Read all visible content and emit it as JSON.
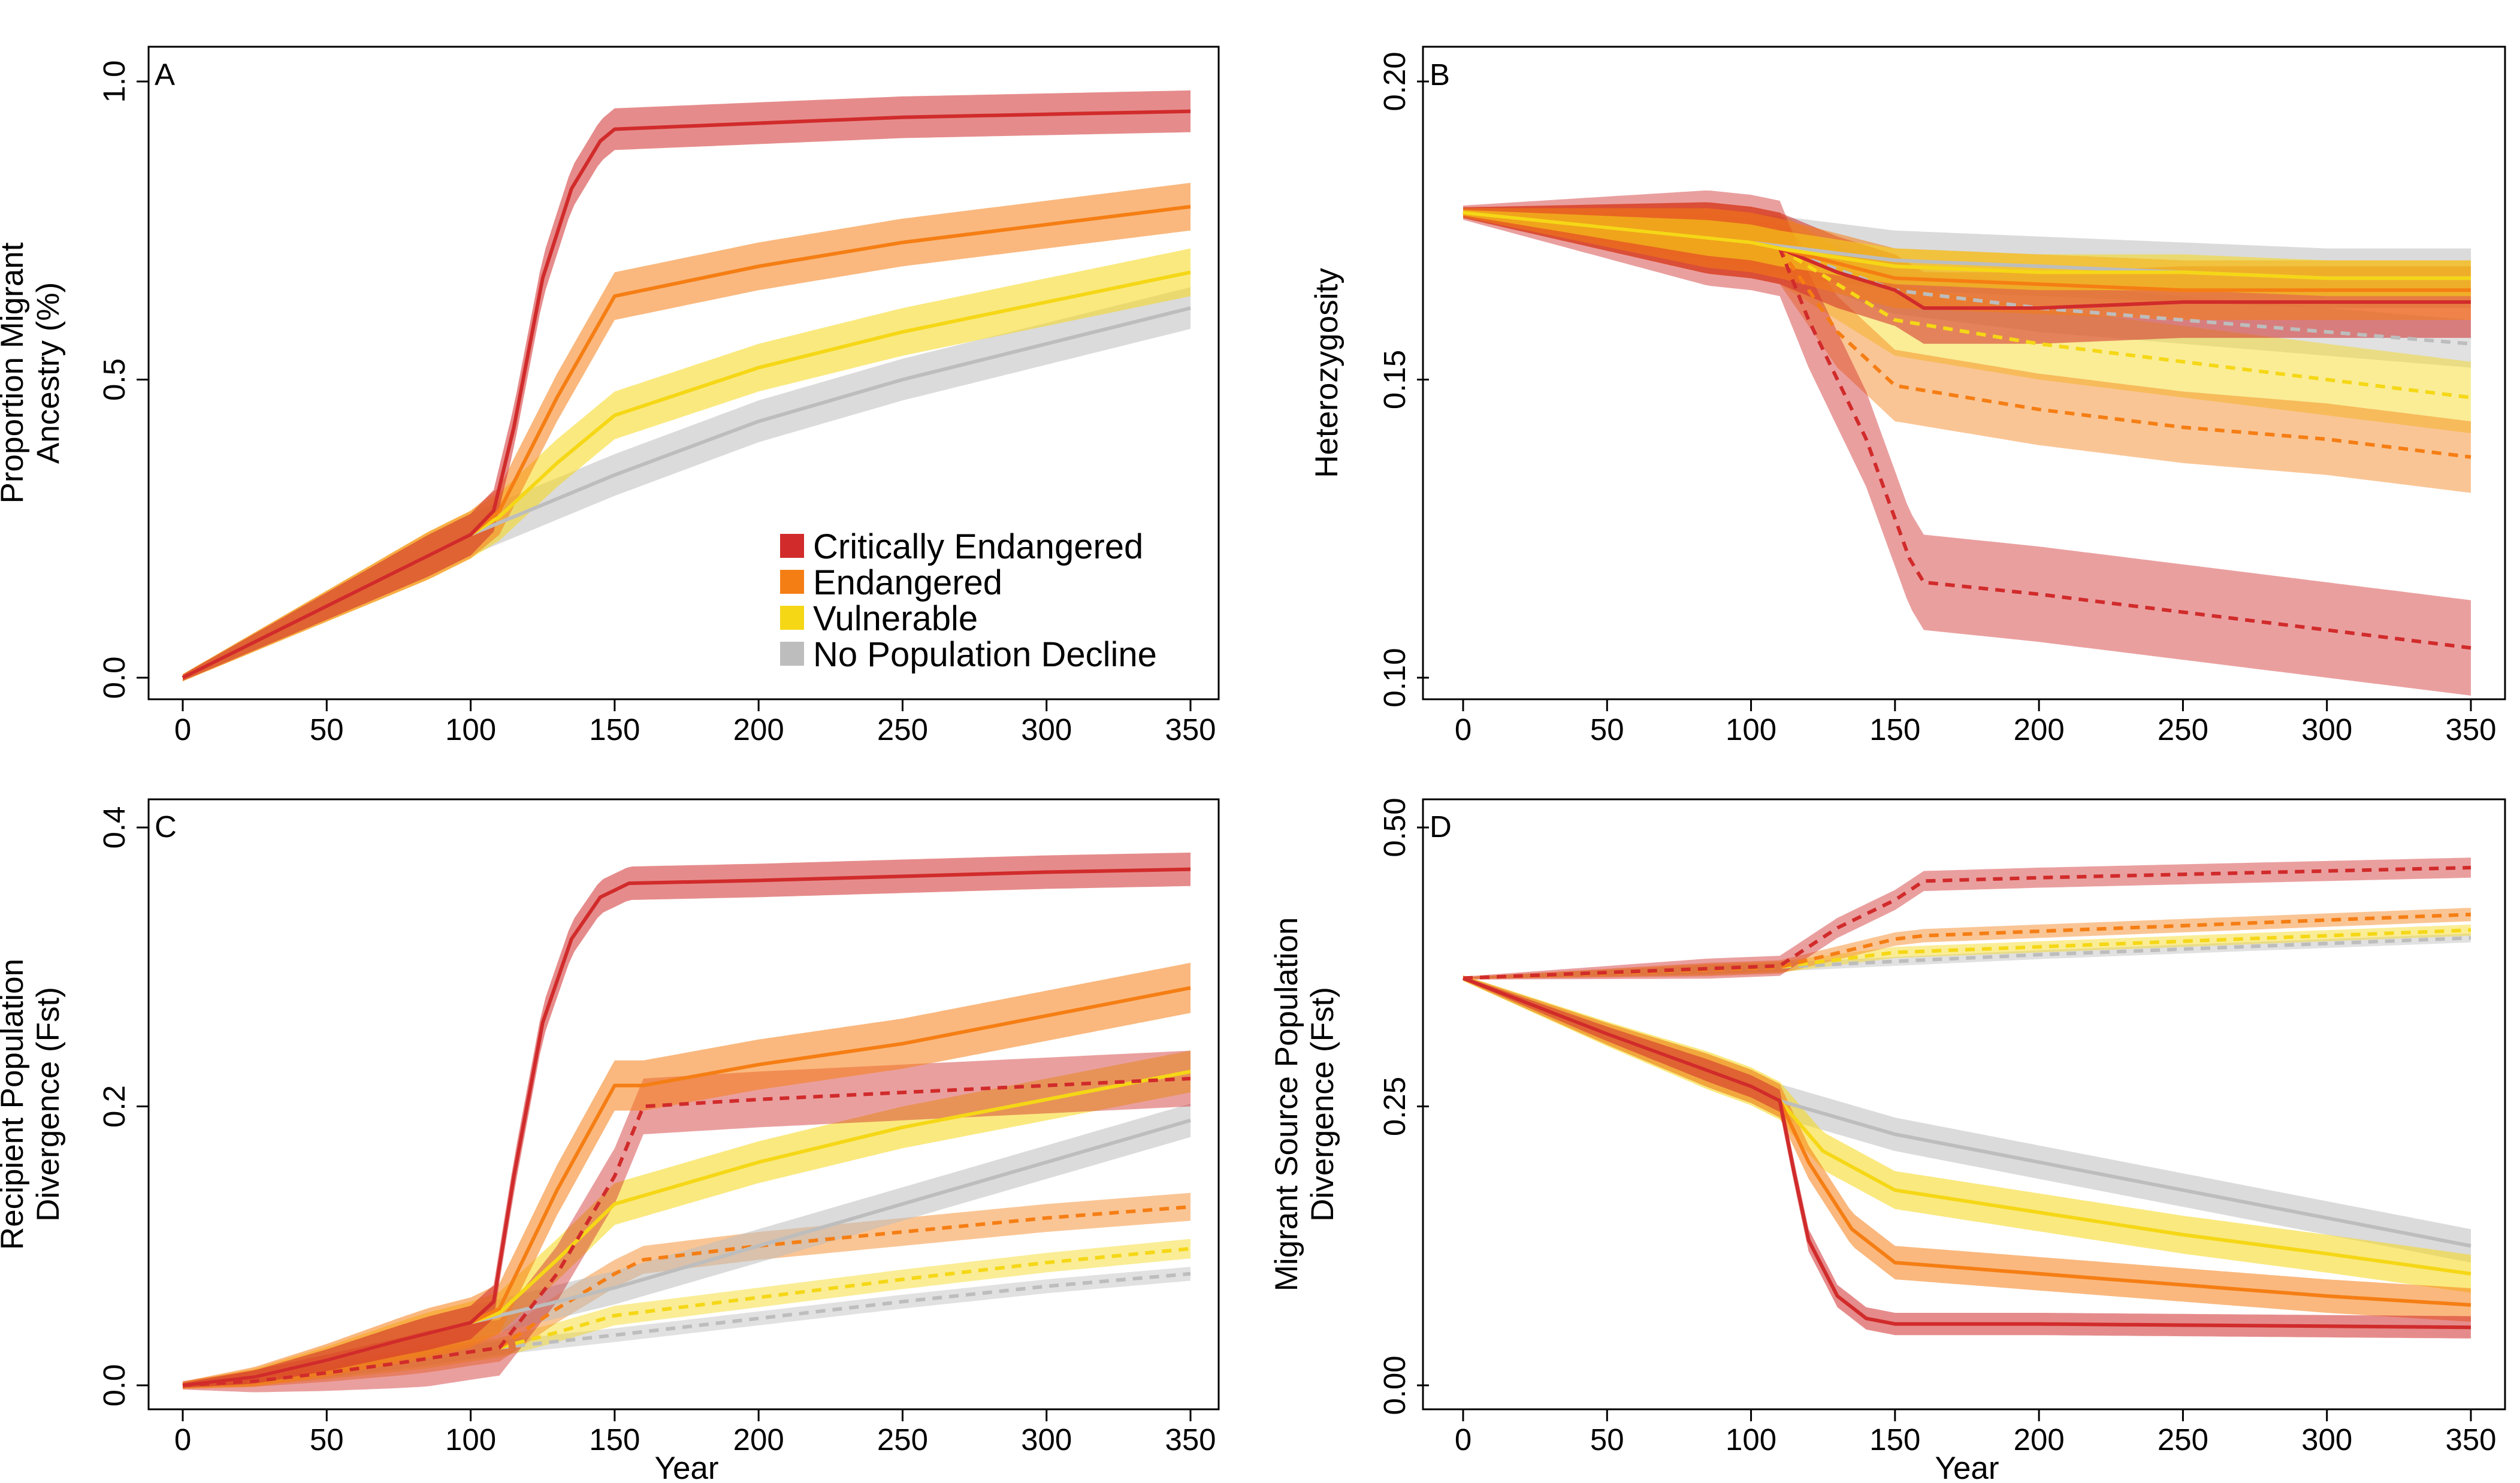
{
  "figure": {
    "x_ticks": [
      "0",
      "50",
      "100",
      "150",
      "200",
      "250",
      "300",
      "350"
    ],
    "legend": [
      {
        "label": "Critically Endangered",
        "color": "#d12b2b"
      },
      {
        "label": "Endangered",
        "color": "#f57e14"
      },
      {
        "label": "Vulnerable",
        "color": "#f5d716"
      },
      {
        "label": "No Population Decline",
        "color": "#bdbdbd"
      }
    ]
  },
  "chart_data": [
    {
      "type": "area",
      "panel": "A",
      "xlabel": "",
      "ylabel_lines": [
        "Proportion Migrant",
        "Ancestry (%)"
      ],
      "xlim": [
        0,
        350
      ],
      "ylim": [
        0,
        1.0
      ],
      "x_ticks": [
        0,
        50,
        100,
        150,
        200,
        250,
        300,
        350
      ],
      "y_ticks": [
        0.0,
        0.5,
        1.0
      ],
      "y_tick_labels": [
        "0.0",
        "0.5",
        "1.0"
      ],
      "legend_position": "bottom-right",
      "series": [
        {
          "name": "No Population Decline",
          "color": "#bdbdbd",
          "style": "solid",
          "x": [
            0,
            50,
            100,
            110,
            150,
            200,
            250,
            300,
            350
          ],
          "y": [
            0,
            0.12,
            0.24,
            0.26,
            0.34,
            0.43,
            0.5,
            0.56,
            0.62
          ],
          "band": 0.035
        },
        {
          "name": "Vulnerable",
          "color": "#f5d716",
          "style": "solid",
          "x": [
            0,
            50,
            100,
            110,
            130,
            150,
            200,
            250,
            300,
            350
          ],
          "y": [
            0,
            0.12,
            0.24,
            0.27,
            0.36,
            0.44,
            0.52,
            0.58,
            0.63,
            0.68
          ],
          "band": 0.04
        },
        {
          "name": "Endangered",
          "color": "#f57e14",
          "style": "solid",
          "x": [
            0,
            50,
            100,
            110,
            130,
            150,
            200,
            250,
            300,
            350
          ],
          "y": [
            0,
            0.12,
            0.24,
            0.28,
            0.47,
            0.64,
            0.69,
            0.73,
            0.76,
            0.79
          ],
          "band": 0.04
        },
        {
          "name": "Critically Endangered",
          "color": "#d12b2b",
          "style": "solid",
          "x": [
            0,
            50,
            100,
            108,
            115,
            125,
            135,
            145,
            150,
            200,
            250,
            300,
            350
          ],
          "y": [
            0,
            0.12,
            0.24,
            0.28,
            0.42,
            0.67,
            0.82,
            0.9,
            0.92,
            0.93,
            0.94,
            0.945,
            0.95
          ],
          "band": 0.035
        }
      ]
    },
    {
      "type": "area",
      "panel": "B",
      "xlabel": "",
      "ylabel_lines": [
        "Heterozygosity"
      ],
      "xlim": [
        0,
        350
      ],
      "ylim": [
        0.1,
        0.2
      ],
      "x_ticks": [
        0,
        50,
        100,
        150,
        200,
        250,
        300,
        350
      ],
      "y_ticks": [
        0.1,
        0.15,
        0.2
      ],
      "y_tick_labels": [
        "0.10",
        "0.15",
        "0.20"
      ],
      "series": [
        {
          "name": "No Population Decline",
          "color": "#bdbdbd",
          "style": "solid",
          "x": [
            0,
            100,
            150,
            200,
            250,
            300,
            350
          ],
          "y": [
            0.178,
            0.173,
            0.17,
            0.169,
            0.168,
            0.167,
            0.167
          ],
          "band": 0.005
        },
        {
          "name": "No Population Decline",
          "color": "#bdbdbd",
          "style": "dashed",
          "x": [
            0,
            100,
            110,
            150,
            200,
            250,
            300,
            350
          ],
          "y": [
            0.178,
            0.173,
            0.172,
            0.165,
            0.162,
            0.16,
            0.158,
            0.156
          ],
          "band": 0.004
        },
        {
          "name": "Vulnerable",
          "color": "#f5d716",
          "style": "dashed",
          "x": [
            0,
            100,
            110,
            150,
            200,
            250,
            300,
            350
          ],
          "y": [
            0.178,
            0.173,
            0.172,
            0.16,
            0.156,
            0.153,
            0.15,
            0.147
          ],
          "band": 0.006
        },
        {
          "name": "Endangered",
          "color": "#f57e14",
          "style": "dashed",
          "x": [
            0,
            100,
            110,
            130,
            150,
            200,
            250,
            300,
            350
          ],
          "y": [
            0.178,
            0.173,
            0.172,
            0.158,
            0.149,
            0.145,
            0.142,
            0.14,
            0.137
          ],
          "band": 0.006
        },
        {
          "name": "Critically Endangered",
          "color": "#d12b2b",
          "style": "dashed",
          "x": [
            0,
            100,
            110,
            120,
            140,
            155,
            160,
            200,
            250,
            300,
            350
          ],
          "y": [
            0.178,
            0.173,
            0.172,
            0.16,
            0.14,
            0.12,
            0.116,
            0.114,
            0.111,
            0.108,
            0.105
          ],
          "band": 0.008
        },
        {
          "name": "Critically Endangered",
          "color": "#d12b2b",
          "style": "solid",
          "x": [
            0,
            100,
            110,
            130,
            150,
            160,
            200,
            250,
            300,
            350
          ],
          "y": [
            0.178,
            0.173,
            0.172,
            0.168,
            0.165,
            0.162,
            0.162,
            0.163,
            0.163,
            0.163
          ],
          "band": 0.006
        },
        {
          "name": "Endangered",
          "color": "#f57e14",
          "style": "solid",
          "x": [
            0,
            100,
            110,
            150,
            200,
            250,
            300,
            350
          ],
          "y": [
            0.178,
            0.173,
            0.172,
            0.167,
            0.166,
            0.165,
            0.165,
            0.165
          ],
          "band": 0.005
        },
        {
          "name": "Vulnerable",
          "color": "#f5d716",
          "style": "solid",
          "x": [
            0,
            100,
            110,
            150,
            200,
            250,
            300,
            350
          ],
          "y": [
            0.178,
            0.173,
            0.172,
            0.169,
            0.168,
            0.168,
            0.167,
            0.167
          ],
          "band": 0.003
        }
      ]
    },
    {
      "type": "area",
      "panel": "C",
      "xlabel": "Year",
      "ylabel_lines": [
        "Recipient Population",
        "Divergence (Fst)"
      ],
      "xlim": [
        0,
        350
      ],
      "ylim": [
        0,
        0.4
      ],
      "x_ticks": [
        0,
        50,
        100,
        150,
        200,
        250,
        300,
        350
      ],
      "y_ticks": [
        0.0,
        0.2,
        0.4
      ],
      "y_tick_labels": [
        "0.0",
        "0.2",
        "0.4"
      ],
      "series": [
        {
          "name": "No Population Decline",
          "color": "#bdbdbd",
          "style": "dashed",
          "x": [
            0,
            25,
            50,
            75,
            100,
            110,
            150,
            200,
            250,
            300,
            350
          ],
          "y": [
            0,
            0.003,
            0.009,
            0.016,
            0.024,
            0.027,
            0.036,
            0.048,
            0.06,
            0.071,
            0.08
          ],
          "band": 0.005
        },
        {
          "name": "Vulnerable",
          "color": "#f5d716",
          "style": "dashed",
          "x": [
            0,
            25,
            50,
            75,
            100,
            110,
            130,
            150,
            200,
            250,
            300,
            350
          ],
          "y": [
            0,
            0.003,
            0.009,
            0.016,
            0.024,
            0.027,
            0.038,
            0.05,
            0.063,
            0.076,
            0.088,
            0.098
          ],
          "band": 0.007
        },
        {
          "name": "Endangered",
          "color": "#f57e14",
          "style": "dashed",
          "x": [
            0,
            25,
            50,
            75,
            100,
            110,
            130,
            150,
            160,
            200,
            250,
            300,
            350
          ],
          "y": [
            0,
            0.003,
            0.009,
            0.016,
            0.024,
            0.027,
            0.055,
            0.08,
            0.09,
            0.1,
            0.11,
            0.12,
            0.128
          ],
          "band": 0.01
        },
        {
          "name": "No Population Decline",
          "color": "#bdbdbd",
          "style": "solid",
          "x": [
            0,
            25,
            50,
            75,
            100,
            110,
            150,
            200,
            250,
            300,
            350
          ],
          "y": [
            0,
            0.006,
            0.018,
            0.032,
            0.045,
            0.05,
            0.07,
            0.1,
            0.13,
            0.16,
            0.19
          ],
          "band": 0.012
        },
        {
          "name": "Vulnerable",
          "color": "#f5d716",
          "style": "solid",
          "x": [
            0,
            25,
            50,
            75,
            100,
            110,
            130,
            150,
            200,
            250,
            300,
            350
          ],
          "y": [
            0,
            0.006,
            0.018,
            0.032,
            0.045,
            0.052,
            0.09,
            0.13,
            0.16,
            0.185,
            0.205,
            0.225
          ],
          "band": 0.015
        },
        {
          "name": "Critically Endangered",
          "color": "#d12b2b",
          "style": "dashed",
          "x": [
            0,
            25,
            50,
            75,
            100,
            110,
            130,
            150,
            160,
            200,
            250,
            300,
            350
          ],
          "y": [
            0,
            0.003,
            0.009,
            0.016,
            0.024,
            0.027,
            0.08,
            0.15,
            0.2,
            0.205,
            0.21,
            0.215,
            0.22
          ],
          "band": 0.02
        },
        {
          "name": "Endangered",
          "color": "#f57e14",
          "style": "solid",
          "x": [
            0,
            25,
            50,
            75,
            100,
            110,
            130,
            150,
            160,
            200,
            250,
            300,
            350
          ],
          "y": [
            0,
            0.006,
            0.018,
            0.032,
            0.045,
            0.055,
            0.14,
            0.215,
            0.215,
            0.23,
            0.245,
            0.265,
            0.285
          ],
          "band": 0.018
        },
        {
          "name": "Critically Endangered",
          "color": "#d12b2b",
          "style": "solid",
          "x": [
            0,
            25,
            50,
            75,
            100,
            108,
            115,
            125,
            135,
            145,
            155,
            200,
            250,
            300,
            350
          ],
          "y": [
            0,
            0.006,
            0.018,
            0.032,
            0.045,
            0.06,
            0.15,
            0.26,
            0.32,
            0.35,
            0.36,
            0.362,
            0.365,
            0.368,
            0.37
          ],
          "band": 0.012
        }
      ]
    },
    {
      "type": "area",
      "panel": "D",
      "xlabel": "Year",
      "ylabel_lines": [
        "Migrant Source Population",
        "Divergence (Fst)"
      ],
      "xlim": [
        0,
        350
      ],
      "ylim": [
        0,
        0.5
      ],
      "x_ticks": [
        0,
        50,
        100,
        150,
        200,
        250,
        300,
        350
      ],
      "y_ticks": [
        0.0,
        0.25,
        0.5
      ],
      "y_tick_labels": [
        "0.00",
        "0.25",
        "0.50"
      ],
      "series": [
        {
          "name": "No Population Decline",
          "color": "#bdbdbd",
          "style": "dashed",
          "x": [
            0,
            110,
            150,
            200,
            250,
            300,
            350
          ],
          "y": [
            0.365,
            0.375,
            0.38,
            0.386,
            0.391,
            0.396,
            0.401
          ],
          "band": 0.004
        },
        {
          "name": "Vulnerable",
          "color": "#f5d716",
          "style": "dashed",
          "x": [
            0,
            110,
            150,
            200,
            250,
            300,
            350
          ],
          "y": [
            0.365,
            0.375,
            0.388,
            0.393,
            0.398,
            0.403,
            0.408
          ],
          "band": 0.005
        },
        {
          "name": "Endangered",
          "color": "#f57e14",
          "style": "dashed",
          "x": [
            0,
            110,
            150,
            160,
            200,
            250,
            300,
            350
          ],
          "y": [
            0.365,
            0.375,
            0.4,
            0.403,
            0.407,
            0.412,
            0.417,
            0.422
          ],
          "band": 0.006
        },
        {
          "name": "Critically Endangered",
          "color": "#d12b2b",
          "style": "dashed",
          "x": [
            0,
            110,
            130,
            150,
            160,
            200,
            250,
            300,
            350
          ],
          "y": [
            0.365,
            0.376,
            0.41,
            0.435,
            0.452,
            0.455,
            0.458,
            0.461,
            0.464
          ],
          "band": 0.009
        },
        {
          "name": "No Population Decline",
          "color": "#bdbdbd",
          "style": "solid",
          "x": [
            0,
            50,
            100,
            110,
            150,
            200,
            250,
            300,
            350
          ],
          "y": [
            0.365,
            0.315,
            0.268,
            0.255,
            0.225,
            0.2,
            0.175,
            0.15,
            0.125
          ],
          "band": 0.015
        },
        {
          "name": "Vulnerable",
          "color": "#f5d716",
          "style": "solid",
          "x": [
            0,
            50,
            100,
            110,
            125,
            150,
            200,
            250,
            300,
            350
          ],
          "y": [
            0.365,
            0.315,
            0.268,
            0.255,
            0.21,
            0.175,
            0.155,
            0.135,
            0.118,
            0.1
          ],
          "band": 0.017
        },
        {
          "name": "Endangered",
          "color": "#f57e14",
          "style": "solid",
          "x": [
            0,
            50,
            100,
            110,
            120,
            135,
            150,
            200,
            250,
            300,
            350
          ],
          "y": [
            0.365,
            0.315,
            0.268,
            0.255,
            0.2,
            0.14,
            0.11,
            0.1,
            0.09,
            0.08,
            0.072
          ],
          "band": 0.015
        },
        {
          "name": "Critically Endangered",
          "color": "#d12b2b",
          "style": "solid",
          "x": [
            0,
            50,
            100,
            110,
            115,
            120,
            130,
            140,
            150,
            160,
            200,
            250,
            300,
            350
          ],
          "y": [
            0.365,
            0.315,
            0.268,
            0.255,
            0.19,
            0.13,
            0.08,
            0.06,
            0.055,
            0.055,
            0.055,
            0.054,
            0.053,
            0.052
          ],
          "band": 0.01
        }
      ]
    }
  ]
}
